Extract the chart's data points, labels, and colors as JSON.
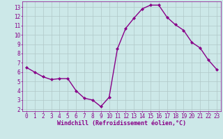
{
  "x": [
    0,
    1,
    2,
    3,
    4,
    5,
    6,
    7,
    8,
    9,
    10,
    11,
    12,
    13,
    14,
    15,
    16,
    17,
    18,
    19,
    20,
    21,
    22,
    23
  ],
  "y": [
    6.5,
    6.0,
    5.5,
    5.2,
    5.3,
    5.3,
    4.0,
    3.2,
    3.0,
    2.3,
    3.3,
    8.5,
    10.7,
    11.8,
    12.8,
    13.2,
    13.2,
    11.9,
    11.1,
    10.5,
    9.2,
    8.6,
    7.3,
    6.3
  ],
  "line_color": "#880088",
  "marker": "D",
  "marker_size": 2.0,
  "line_width": 1.0,
  "bg_color": "#cce8e8",
  "grid_color": "#b0c8c8",
  "xlabel": "Windchill (Refroidissement éolien,°C)",
  "xlabel_color": "#880088",
  "xlabel_fontsize": 6.0,
  "tick_color": "#880088",
  "tick_fontsize": 5.5,
  "xlim": [
    -0.5,
    23.5
  ],
  "ylim": [
    1.8,
    13.6
  ],
  "yticks": [
    2,
    3,
    4,
    5,
    6,
    7,
    8,
    9,
    10,
    11,
    12,
    13
  ],
  "xticks": [
    0,
    1,
    2,
    3,
    4,
    5,
    6,
    7,
    8,
    9,
    10,
    11,
    12,
    13,
    14,
    15,
    16,
    17,
    18,
    19,
    20,
    21,
    22,
    23
  ]
}
